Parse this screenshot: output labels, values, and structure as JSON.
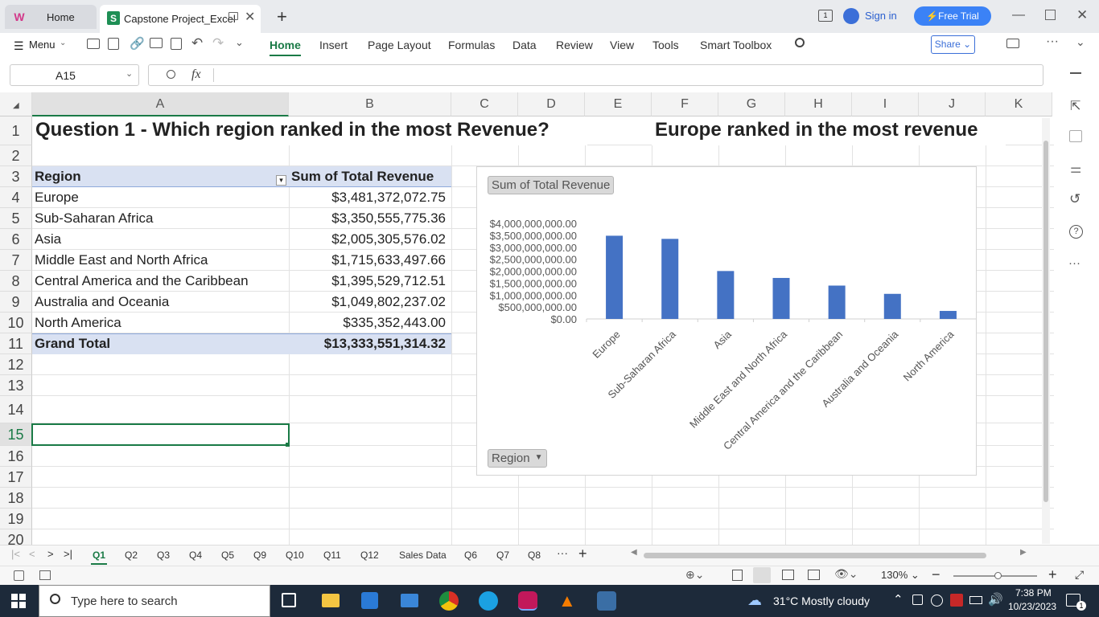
{
  "titlebar": {
    "home_tab": "Home",
    "file_tab": "Capstone Project_Excel",
    "sign_in": "Sign in",
    "free_trial": "Free Trial"
  },
  "ribbon": {
    "menu": "Menu",
    "tabs": [
      "Home",
      "Insert",
      "Page Layout",
      "Formulas",
      "Data",
      "Review",
      "View",
      "Tools",
      "Smart Toolbox"
    ],
    "share": "Share"
  },
  "formula_bar": {
    "name_box": "A15",
    "fx": "fx",
    "content": ""
  },
  "columns": [
    "A",
    "B",
    "C",
    "D",
    "E",
    "F",
    "G",
    "H",
    "I",
    "J",
    "K"
  ],
  "rows": [
    "1",
    "2",
    "3",
    "4",
    "5",
    "6",
    "7",
    "8",
    "9",
    "10",
    "11",
    "12",
    "13",
    "14",
    "15",
    "16",
    "17",
    "18",
    "19",
    "20"
  ],
  "sheet": {
    "title": "Question 1 - Which region ranked in the most Revenue?",
    "answer": "Europe ranked in the most revenue",
    "pivot_header": {
      "region": "Region",
      "sum": "Sum of Total Revenue"
    },
    "pivot_rows": [
      {
        "region": "Europe",
        "value": "$3,481,372,072.75"
      },
      {
        "region": "Sub-Saharan Africa",
        "value": "$3,350,555,775.36"
      },
      {
        "region": "Asia",
        "value": "$2,005,305,576.02"
      },
      {
        "region": "Middle East and North Africa",
        "value": "$1,715,633,497.66"
      },
      {
        "region": "Central America and the Caribbean",
        "value": "$1,395,529,712.51"
      },
      {
        "region": "Australia and Oceania",
        "value": "$1,049,802,237.02"
      },
      {
        "region": "North America",
        "value": "$335,352,443.00"
      }
    ],
    "grand_total": {
      "label": "Grand Total",
      "value": "$13,333,551,314.32"
    }
  },
  "chart_data": {
    "type": "bar",
    "title": "",
    "series_button": "Sum of Total Revenue",
    "axis_button": "Region",
    "categories": [
      "Europe",
      "Sub-Saharan Africa",
      "Asia",
      "Middle East and North Africa",
      "Central America and the Caribbean",
      "Australia and Oceania",
      "North America"
    ],
    "values": [
      3481372072.75,
      3350555775.36,
      2005305576.02,
      1715633497.66,
      1395529712.51,
      1049802237.02,
      335352443.0
    ],
    "ylim": [
      0,
      4000000000
    ],
    "yticks": [
      "$0.00",
      "$500,000,000.00",
      "$1,000,000,000.00",
      "$1,500,000,000.00",
      "$2,000,000,000.00",
      "$2,500,000,000.00",
      "$3,000,000,000.00",
      "$3,500,000,000.00",
      "$4,000,000,000.00"
    ],
    "bar_color": "#4472c4"
  },
  "sheet_tabs": [
    "Q1",
    "Q2",
    "Q3",
    "Q4",
    "Q5",
    "Q9",
    "Q10",
    "Q11",
    "Q12",
    "Sales Data",
    "Q6",
    "Q7",
    "Q8"
  ],
  "status": {
    "zoom": "130%"
  },
  "taskbar": {
    "search_placeholder": "Type here to search",
    "weather": "31°C  Mostly cloudy",
    "time": "7:38 PM",
    "date": "10/23/2023",
    "notif_count": "1"
  }
}
